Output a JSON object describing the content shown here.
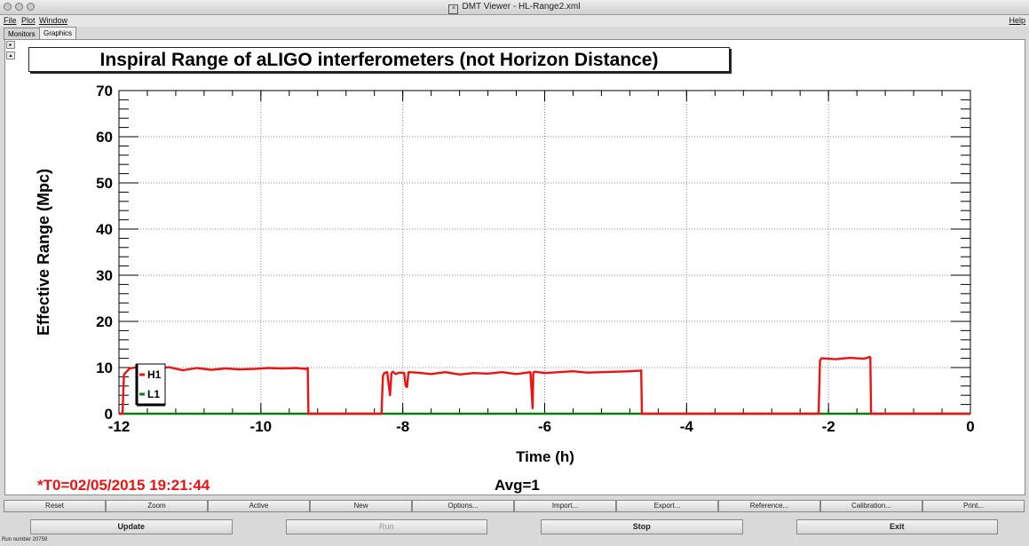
{
  "window": {
    "title": "DMT Viewer - HL-Range2.xml"
  },
  "menu": {
    "items": [
      "File",
      "Plot",
      "Window"
    ],
    "help": "Help"
  },
  "tabs": [
    {
      "label": "Monitors",
      "active": false
    },
    {
      "label": "Graphics",
      "active": true
    }
  ],
  "plot": {
    "title": "Inspiral Range of aLIGO interferometers (not Horizon Distance)",
    "t0_label": "*T0=02/05/2015 19:21:44",
    "avg_label": "Avg=1"
  },
  "chart_data": {
    "type": "line",
    "title": "Inspiral Range of aLIGO interferometers (not Horizon Distance)",
    "xlabel": "Time (h)",
    "ylabel": "Effective Range (Mpc)",
    "xlim": [
      -12,
      0
    ],
    "ylim": [
      0,
      70
    ],
    "xticks": [
      -12,
      -10,
      -8,
      -6,
      -4,
      -2,
      0
    ],
    "yticks": [
      0,
      10,
      20,
      30,
      40,
      50,
      60,
      70
    ],
    "grid": true,
    "legend": "bottom-left",
    "series": [
      {
        "name": "H1",
        "color": "#ee1111",
        "x": [
          -12.0,
          -11.95,
          -11.93,
          -11.85,
          -11.7,
          -11.5,
          -11.3,
          -11.1,
          -10.9,
          -10.7,
          -10.5,
          -10.3,
          -10.1,
          -9.9,
          -9.7,
          -9.5,
          -9.36,
          -9.34,
          -9.33,
          -8.3,
          -8.28,
          -8.26,
          -8.22,
          -8.18,
          -8.16,
          -8.14,
          -8.1,
          -8.05,
          -7.98,
          -7.96,
          -7.94,
          -7.92,
          -7.8,
          -7.6,
          -7.4,
          -7.2,
          -7.0,
          -6.8,
          -6.6,
          -6.4,
          -6.2,
          -6.17,
          -6.16,
          -6.14,
          -6.0,
          -5.8,
          -5.6,
          -5.4,
          -5.2,
          -5.0,
          -4.8,
          -4.66,
          -4.64,
          -4.63,
          -2.14,
          -2.12,
          -2.1,
          -1.9,
          -1.7,
          -1.5,
          -1.42,
          -1.41,
          -1.4,
          0.0
        ],
        "y": [
          0,
          0,
          8.5,
          9.8,
          10.2,
          9.6,
          10.1,
          9.4,
          9.9,
          9.5,
          9.8,
          9.6,
          9.7,
          9.9,
          9.8,
          9.9,
          9.7,
          9.9,
          0,
          0,
          8.2,
          8.8,
          9.0,
          4.0,
          8.8,
          9.1,
          8.6,
          8.9,
          8.8,
          6.0,
          5.8,
          9.0,
          8.9,
          8.6,
          9.0,
          8.5,
          8.8,
          8.7,
          9.0,
          8.6,
          9.0,
          1.2,
          8.9,
          9.1,
          8.8,
          9.0,
          9.2,
          8.9,
          9.0,
          9.1,
          9.2,
          9.3,
          9.4,
          0,
          0,
          11.5,
          12.0,
          11.8,
          12.1,
          11.9,
          12.3,
          12.2,
          0,
          0
        ]
      },
      {
        "name": "L1",
        "color": "#0a7d0a",
        "x": [
          -12.0,
          0.0
        ],
        "y": [
          0,
          0
        ]
      }
    ]
  },
  "buttons": {
    "row1": [
      "Reset",
      "Zoom",
      "Active",
      "New",
      "Options...",
      "Import...",
      "Export...",
      "Reference...",
      "Calibration...",
      "Print..."
    ],
    "update": "Update",
    "run": "Run",
    "stop": "Stop",
    "exit": "Exit"
  },
  "status": "Run number 20759"
}
